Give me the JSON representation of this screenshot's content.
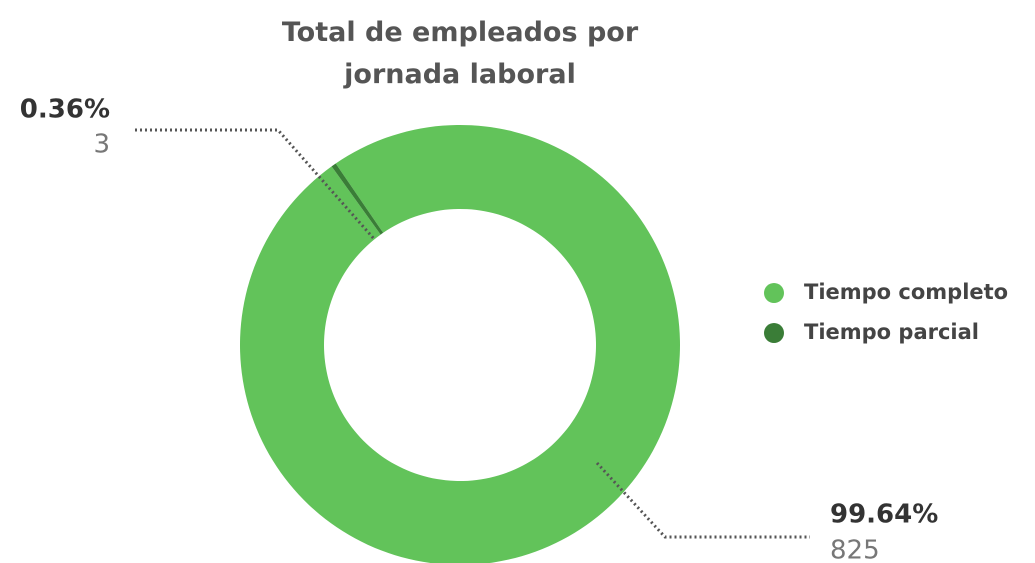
{
  "chart_data": {
    "type": "donut",
    "title": "Total de empleados por jornada laboral",
    "categories": [
      "Tiempo completo",
      "Tiempo parcial"
    ],
    "values": [
      825,
      3
    ],
    "percentages": [
      99.64,
      0.36
    ],
    "percentage_labels": [
      "99.64%",
      "0.36%"
    ],
    "colors": [
      "#62c35a",
      "#3a7d37"
    ],
    "legend": "right"
  }
}
